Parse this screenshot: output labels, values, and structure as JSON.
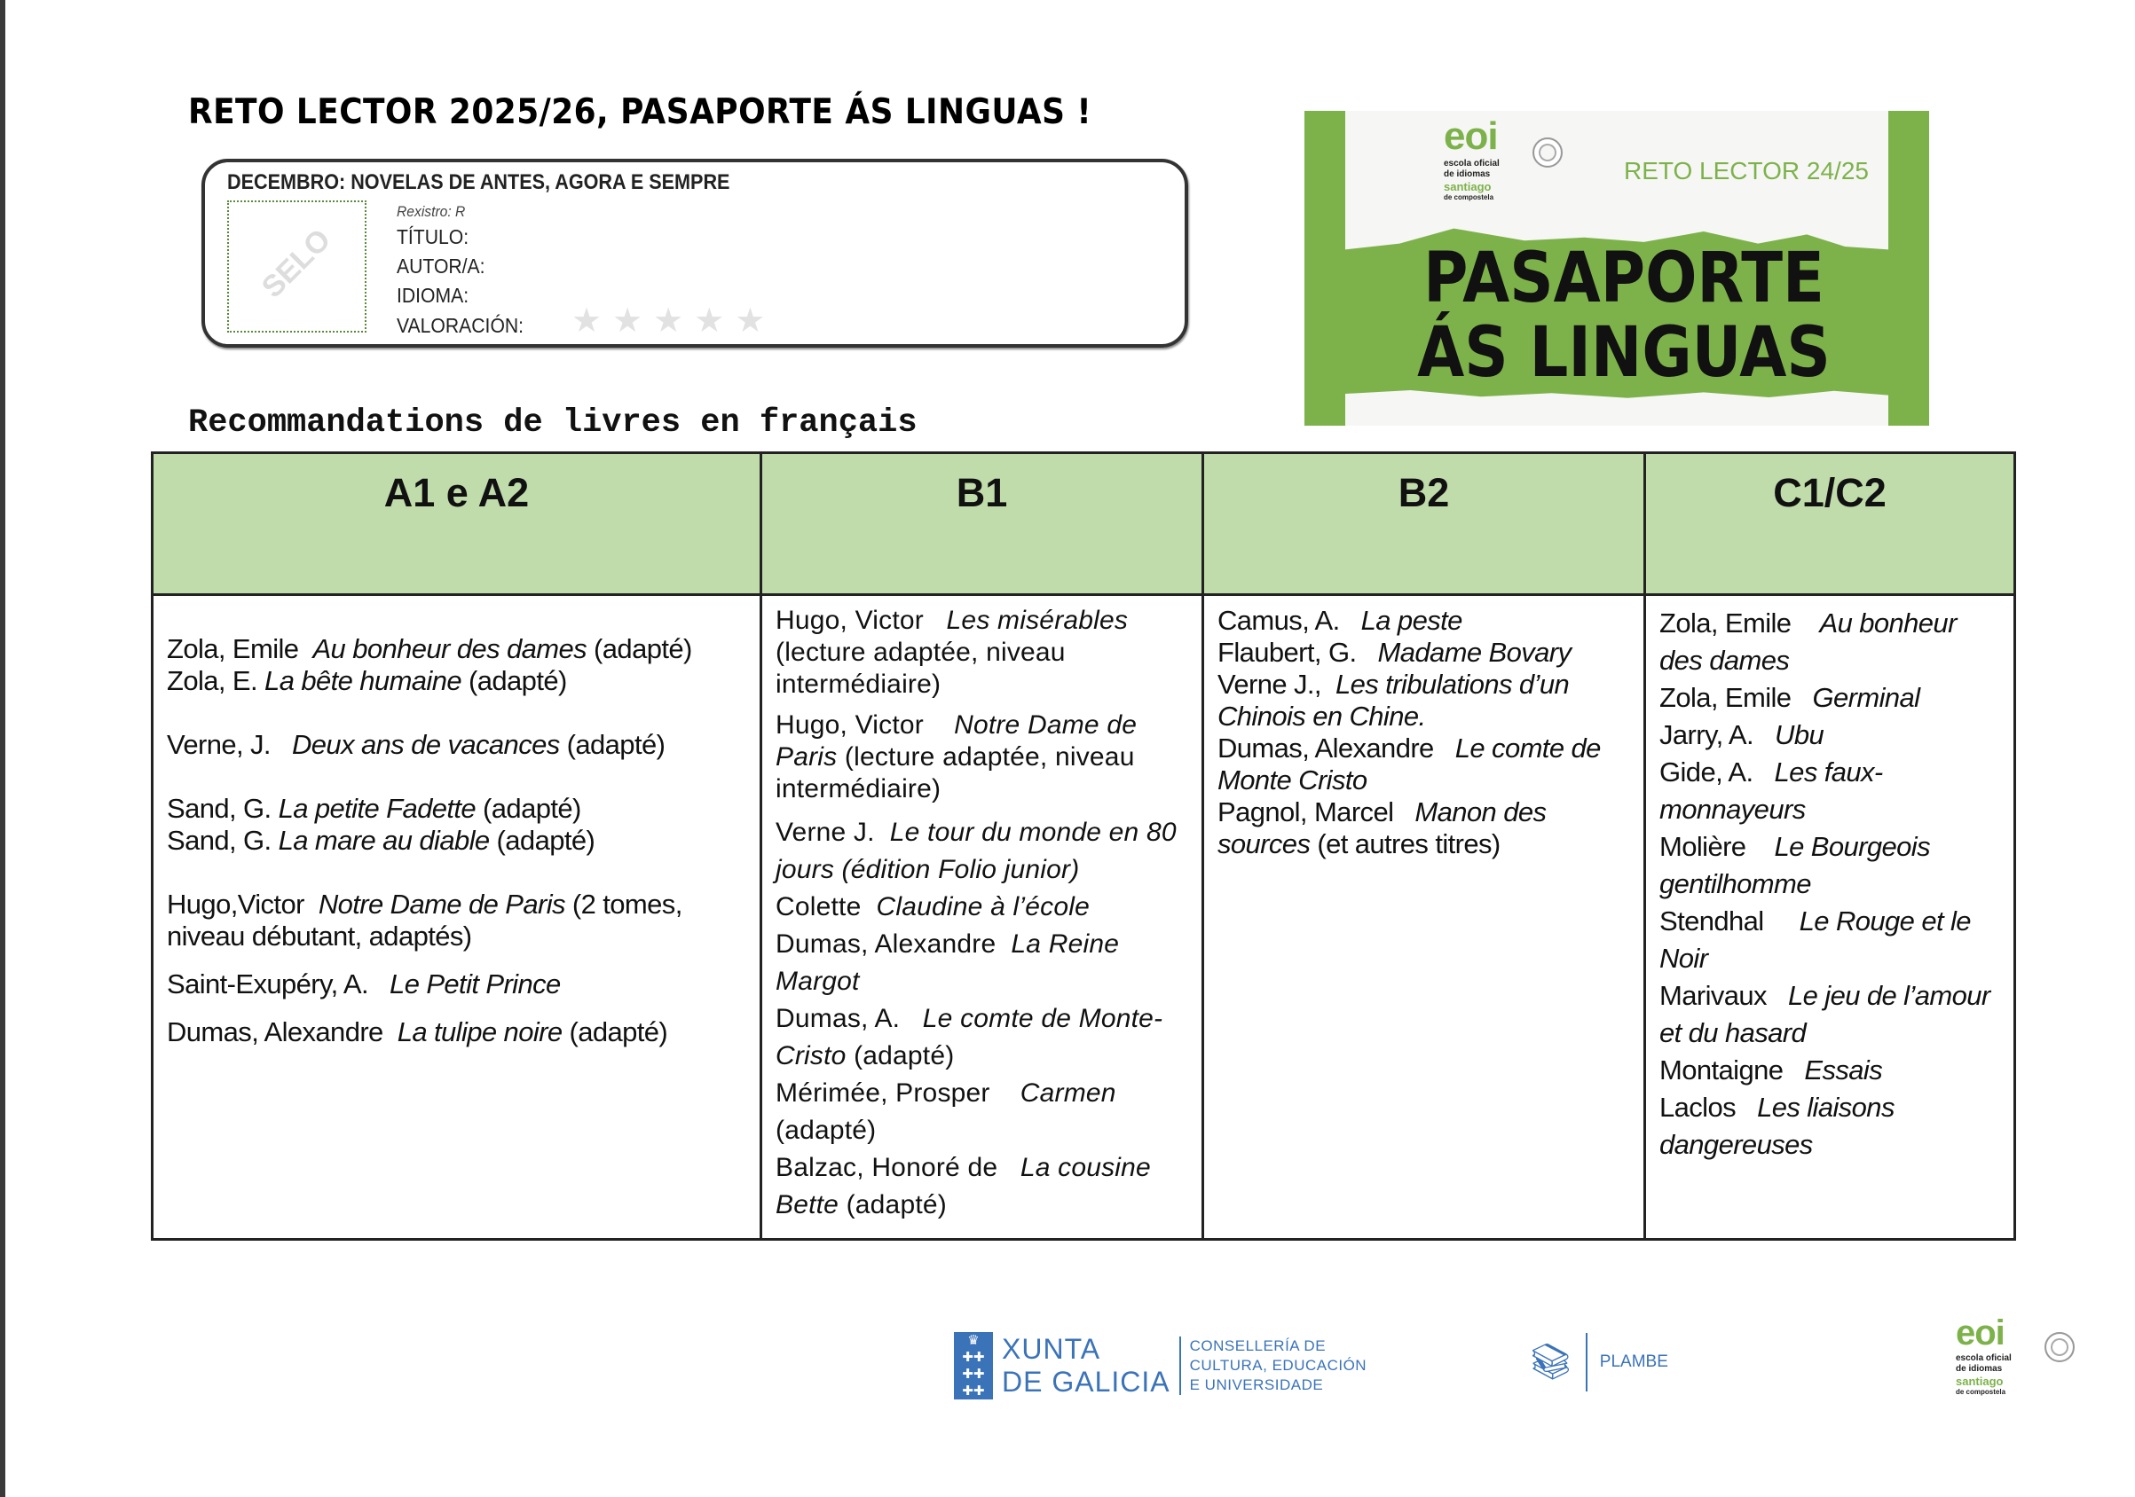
{
  "title": "RETO LECTOR 2025/26, PASAPORTE ÁS LINGUAS !",
  "card": {
    "heading": "DECEMBRO: NOVELAS DE ANTES, AGORA E SEMPRE",
    "stamp": "SELO",
    "registry": "Rexistro: R",
    "fields": [
      "TÍTULO:",
      "AUTOR/A:",
      "IDIOMA:",
      "VALORACIÓN:"
    ],
    "rating": {
      "value": 0,
      "max": 5
    }
  },
  "banner": {
    "logo": {
      "mark": "eoi",
      "lines": [
        "escola oficial",
        "de idiomas",
        "santiago",
        "de compostela"
      ]
    },
    "edition": "RETO LECTOR 24/25",
    "headline": [
      "PASAPORTE",
      "ÁS LINGUAS"
    ],
    "colors": {
      "green": "#7db24b"
    }
  },
  "subtitle": "Recommandations de livres en français",
  "table": {
    "header_color": "#c0dcab",
    "columns": [
      "A1 e A2",
      "B1",
      "B2",
      "C1/C2"
    ],
    "a1a2": [
      [
        {
          "author": "Zola, Emile  ",
          "title": "Au bonheur des dames",
          "note": " (adapté)"
        },
        {
          "author": "Zola, E. ",
          "title": "La bête humaine",
          "note": " (adapté)"
        }
      ],
      [
        {
          "author": "Verne, J.   ",
          "title": "Deux ans de vacances",
          "note": " (adapté)"
        }
      ],
      [
        {
          "author": "Sand, G. ",
          "title": "La petite Fadette",
          "note": " (adapté)"
        },
        {
          "author": "Sand, G. ",
          "title": "La mare au diable",
          "note": " (adapté)"
        }
      ],
      [
        {
          "author": "Hugo,Victor  ",
          "title": "Notre Dame de Paris",
          "note": " (2 tomes, niveau débutant, adaptés)"
        }
      ],
      [
        {
          "author": "Saint-Exupéry, A.   ",
          "title": "Le Petit Prince",
          "note": ""
        }
      ],
      [
        {
          "author": "Dumas, Alexandre  ",
          "title": "La tulipe noire",
          "note": " (adapté)"
        }
      ]
    ],
    "b1": [
      {
        "author": "Hugo, Victor   ",
        "title": "Les misérables",
        "note": " (lecture adaptée, niveau intermédiaire)"
      },
      {
        "author": "Hugo, Victor    ",
        "title": "Notre Dame de Paris",
        "note": " (lecture adaptée, niveau intermédiaire)"
      },
      {
        "author": "Verne J.  ",
        "title": "Le tour du monde en 80 jours (édition Folio junior)",
        "note": ""
      },
      {
        "author": "Colette  ",
        "title": "Claudine à l’école",
        "note": ""
      },
      {
        "author": "Dumas, Alexandre  ",
        "title": "La Reine Margot",
        "note": ""
      },
      {
        "author": "Dumas, A.   ",
        "title": "Le comte de Monte-Cristo",
        "note": " (adapté)"
      },
      {
        "author": "Mérimée, Prosper    ",
        "title": "Carmen",
        "note": " (adapté)"
      },
      {
        "author": "Balzac, Honoré de   ",
        "title": "La cousine Bette",
        "note": " (adapté)"
      }
    ],
    "b2": [
      {
        "author": "Camus, A.   ",
        "title": "La peste",
        "note": ""
      },
      {
        "author": "Flaubert, G.   ",
        "title": "Madame Bovary",
        "note": ""
      },
      {
        "author": "Verne J.,  ",
        "title": "Les tribulations d’un Chinois en Chine.",
        "note": ""
      },
      {
        "author": "Dumas, Alexandre   ",
        "title": "Le comte de Monte Cristo",
        "note": ""
      },
      {
        "author": "Pagnol, Marcel   ",
        "title": "Manon des sources",
        "note": " (et autres titres)"
      }
    ],
    "c1c2": [
      {
        "author": "Zola, Emile    ",
        "title": "Au bonheur des dames",
        "note": ""
      },
      {
        "author": "Zola, Emile   ",
        "title": "Germinal",
        "note": ""
      },
      {
        "author": "Jarry, A.   ",
        "title": "Ubu",
        "note": ""
      },
      {
        "author": "Gide, A.   ",
        "title": "Les faux-monnayeurs",
        "note": ""
      },
      {
        "author": "Molière    ",
        "title": "Le Bourgeois gentilhomme",
        "note": ""
      },
      {
        "author": "Stendhal     ",
        "title": "Le Rouge et le Noir",
        "note": ""
      },
      {
        "author": "Marivaux   ",
        "title": "Le jeu de l’amour et du hasard",
        "note": ""
      },
      {
        "author": "Montaigne   ",
        "title": "Essais",
        "note": ""
      },
      {
        "author": "Laclos   ",
        "title": "Les liaisons dangereuses",
        "note": ""
      }
    ]
  },
  "footer": {
    "xunta": {
      "name": [
        "XUNTA",
        "DE GALICIA"
      ],
      "department": [
        "CONSELLERÍA DE",
        "CULTURA, EDUCACIÓN",
        "E UNIVERSIDADE"
      ]
    },
    "plambe": "PLAMBE",
    "eoi": {
      "mark": "eoi",
      "lines": [
        "escola oficial",
        "de idiomas",
        "santiago",
        "de compostela"
      ]
    },
    "colors": {
      "blue": "#3b73b9"
    }
  }
}
